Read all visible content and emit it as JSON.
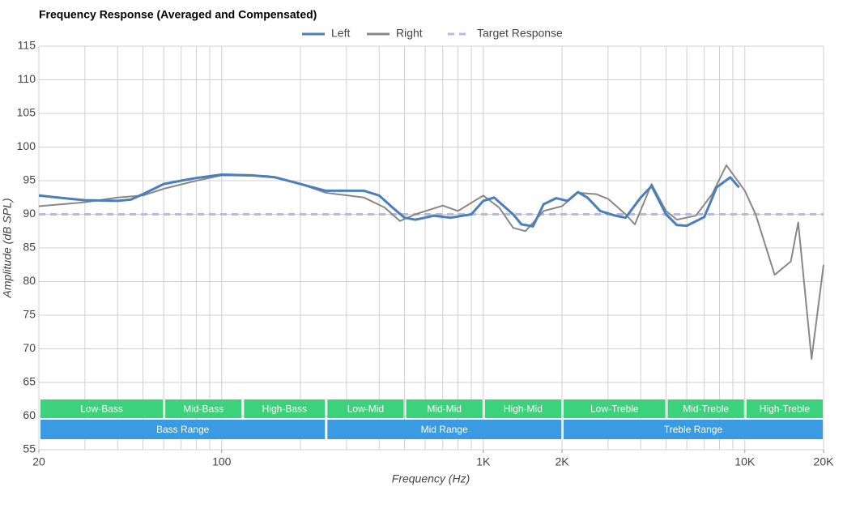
{
  "chart_data": {
    "type": "line",
    "title": "Frequency Response (Averaged and Compensated)",
    "x_label": "Frequency (Hz)",
    "y_label": "Amplitude (dB SPL)",
    "xscale": "log",
    "xlim": [
      20,
      20000
    ],
    "ylim": [
      55,
      115
    ],
    "xticks": [
      20,
      100,
      {
        "value": 1000,
        "label": "1K"
      },
      {
        "value": 2000,
        "label": "2K"
      },
      {
        "value": 10000,
        "label": "10K"
      },
      {
        "value": 20000,
        "label": "20K"
      }
    ],
    "xgrid": [
      20,
      30,
      40,
      50,
      60,
      70,
      80,
      90,
      100,
      200,
      300,
      400,
      500,
      600,
      700,
      800,
      900,
      1000,
      2000,
      3000,
      4000,
      5000,
      6000,
      7000,
      8000,
      9000,
      10000,
      20000
    ],
    "yticks": [
      55,
      60,
      65,
      70,
      75,
      80,
      85,
      90,
      95,
      100,
      105,
      110,
      115
    ],
    "grid": true,
    "legend": "top",
    "series": [
      {
        "name": "Left",
        "color": "#4a7fba",
        "width": 3,
        "x": [
          20,
          25,
          30,
          40,
          45,
          50,
          60,
          70,
          80,
          100,
          130,
          160,
          200,
          250,
          300,
          350,
          400,
          450,
          500,
          550,
          650,
          750,
          900,
          1000,
          1100,
          1300,
          1400,
          1550,
          1700,
          1900,
          2100,
          2300,
          2500,
          2800,
          3200,
          3500,
          4000,
          4400,
          5000,
          5500,
          6000,
          7000,
          7800,
          8800,
          9500
        ],
        "values": [
          92.8,
          92.4,
          92.1,
          92.0,
          92.2,
          93.0,
          94.5,
          95.0,
          95.4,
          95.9,
          95.8,
          95.5,
          94.5,
          93.5,
          93.5,
          93.5,
          92.8,
          91.0,
          89.5,
          89.2,
          89.8,
          89.5,
          90.0,
          92.0,
          92.5,
          90.0,
          88.5,
          88.2,
          91.5,
          92.4,
          92.0,
          93.3,
          92.5,
          90.5,
          89.8,
          89.5,
          92.5,
          94.2,
          90.0,
          88.4,
          88.3,
          89.6,
          94.0,
          95.5,
          94.0
        ]
      },
      {
        "name": "Right",
        "color": "#888888",
        "width": 2,
        "x": [
          20,
          30,
          40,
          50,
          60,
          80,
          100,
          150,
          200,
          250,
          350,
          420,
          480,
          550,
          700,
          800,
          1000,
          1150,
          1300,
          1450,
          1700,
          2000,
          2300,
          2700,
          3000,
          3500,
          3800,
          4400,
          5000,
          5500,
          6500,
          7500,
          8500,
          10000,
          11000,
          13000,
          15000,
          16000,
          18000,
          20000
        ],
        "values": [
          91.2,
          91.8,
          92.5,
          92.8,
          93.8,
          95.0,
          95.8,
          95.7,
          94.5,
          93.2,
          92.5,
          91.0,
          89.0,
          90.0,
          91.3,
          90.5,
          92.8,
          91.0,
          88.0,
          87.5,
          90.5,
          91.2,
          93.2,
          93.0,
          92.3,
          90.0,
          88.5,
          94.5,
          90.5,
          89.2,
          89.8,
          93.0,
          97.3,
          93.5,
          90.0,
          81.0,
          83.0,
          88.8,
          68.5,
          82.5
        ]
      },
      {
        "name": "Target Response",
        "color": "#b8b8f0",
        "width": 3,
        "dash": true,
        "x": [
          20,
          20000
        ],
        "values": [
          90,
          90
        ]
      }
    ],
    "sub_ranges": [
      {
        "label": "Low-Bass",
        "start": 20,
        "end": 60
      },
      {
        "label": "Mid-Bass",
        "start": 60,
        "end": 120
      },
      {
        "label": "High-Bass",
        "start": 120,
        "end": 250
      },
      {
        "label": "Low-Mid",
        "start": 250,
        "end": 500
      },
      {
        "label": "Mid-Mid",
        "start": 500,
        "end": 1000
      },
      {
        "label": "High-Mid",
        "start": 1000,
        "end": 2000
      },
      {
        "label": "Low-Treble",
        "start": 2000,
        "end": 5000
      },
      {
        "label": "Mid-Treble",
        "start": 5000,
        "end": 10000
      },
      {
        "label": "High-Treble",
        "start": 10000,
        "end": 20000
      }
    ],
    "ranges": [
      {
        "label": "Bass Range",
        "start": 20,
        "end": 250
      },
      {
        "label": "Mid Range",
        "start": 250,
        "end": 2000
      },
      {
        "label": "Treble Range",
        "start": 2000,
        "end": 20000
      }
    ],
    "sub_range_color": "#3cd17b",
    "range_color": "#3a9be2"
  }
}
